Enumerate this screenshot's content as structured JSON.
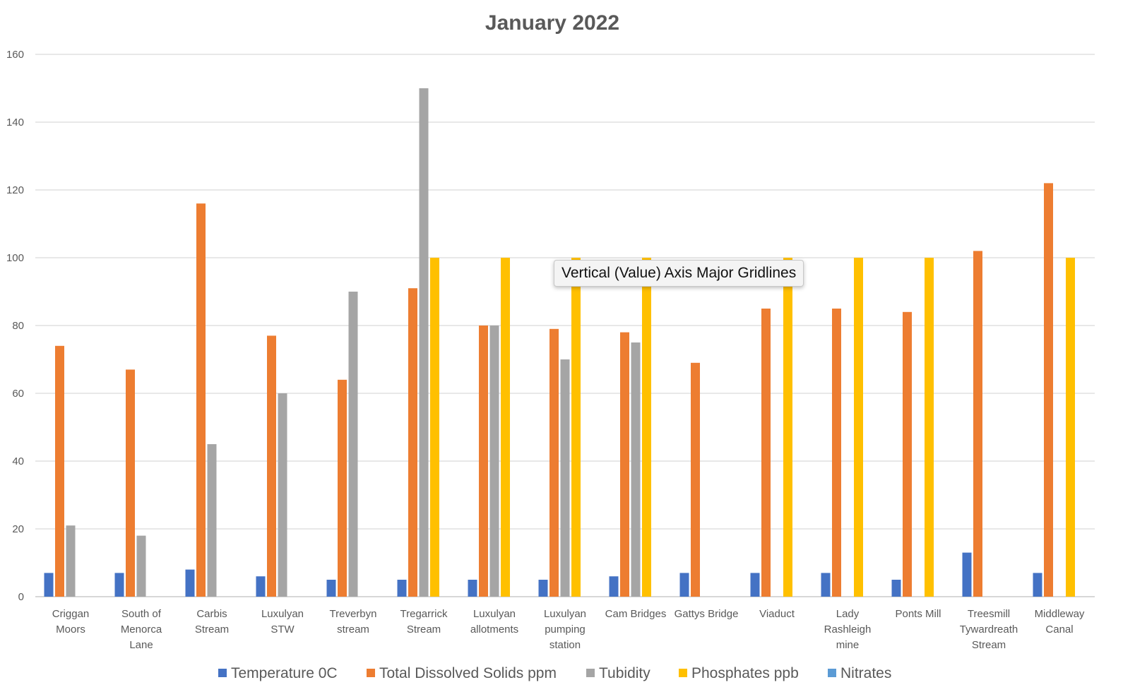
{
  "chart_data": {
    "type": "bar",
    "title": "January 2022",
    "xlabel": "",
    "ylabel": "",
    "ylim": [
      0,
      160
    ],
    "yticks": [
      0,
      20,
      40,
      60,
      80,
      100,
      120,
      140,
      160
    ],
    "grid": true,
    "legend_position": "bottom",
    "categories": [
      [
        "Criggan",
        "Moors"
      ],
      [
        "South of",
        "Menorca",
        "Lane"
      ],
      [
        "Carbis",
        "Stream"
      ],
      [
        "Luxulyan",
        "STW"
      ],
      [
        "Treverbyn",
        "stream"
      ],
      [
        "Tregarrick",
        "Stream"
      ],
      [
        "Luxulyan",
        "allotments"
      ],
      [
        "Luxulyan",
        "pumping",
        "station"
      ],
      [
        "Cam Bridges"
      ],
      [
        "Gattys Bridge"
      ],
      [
        "Viaduct"
      ],
      [
        "Lady",
        "Rashleigh",
        "mine"
      ],
      [
        "Ponts Mill"
      ],
      [
        "Treesmill",
        "Tywardreath",
        "Stream"
      ],
      [
        "Middleway",
        "Canal"
      ]
    ],
    "series": [
      {
        "name": "Temperature 0C",
        "color": "#4472c4",
        "values": [
          7,
          7,
          8,
          6,
          5,
          5,
          5,
          5,
          6,
          7,
          7,
          7,
          5,
          13,
          7
        ]
      },
      {
        "name": "Total Dissolved Solids ppm",
        "color": "#ed7d31",
        "values": [
          74,
          67,
          116,
          77,
          64,
          91,
          80,
          79,
          78,
          69,
          85,
          85,
          84,
          102,
          122
        ]
      },
      {
        "name": "Tubidity",
        "color": "#a5a5a5",
        "values": [
          21,
          18,
          45,
          60,
          90,
          150,
          80,
          70,
          75,
          null,
          null,
          null,
          null,
          null,
          null
        ]
      },
      {
        "name": "Phosphates ppb",
        "color": "#ffc000",
        "values": [
          null,
          null,
          null,
          null,
          null,
          100,
          100,
          100,
          100,
          null,
          100,
          100,
          100,
          null,
          100
        ]
      },
      {
        "name": "Nitrates",
        "color": "#5b9bd5",
        "values": [
          null,
          null,
          null,
          null,
          null,
          null,
          null,
          null,
          null,
          null,
          null,
          null,
          null,
          null,
          null
        ]
      }
    ]
  },
  "tooltip": {
    "text": "Vertical (Value) Axis Major Gridlines"
  }
}
